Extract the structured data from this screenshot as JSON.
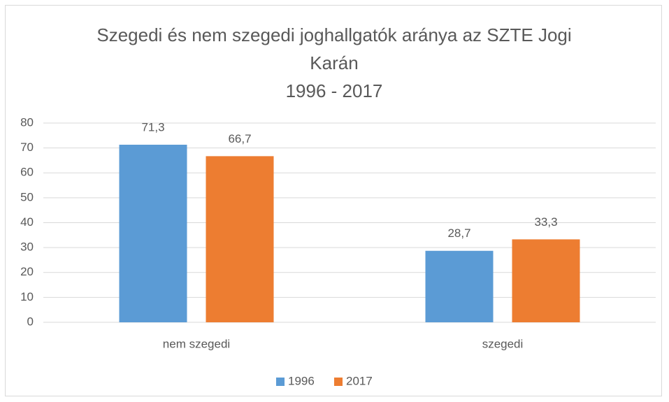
{
  "chart_data": {
    "type": "bar",
    "title": "Szegedi és nem szegedi joghallgatók aránya az SZTE Jogi Karán",
    "subtitle": "1996 - 2017",
    "categories": [
      "nem szegedi",
      "szegedi"
    ],
    "series": [
      {
        "name": "1996",
        "color": "#5b9bd5",
        "values": [
          71.3,
          28.7
        ],
        "value_labels": [
          "71,3",
          "28,7"
        ]
      },
      {
        "name": "2017",
        "color": "#ed7d31",
        "values": [
          66.7,
          33.3
        ],
        "value_labels": [
          "66,7",
          "33,3"
        ]
      }
    ],
    "ylim": [
      0,
      80
    ],
    "yticks": [
      0,
      10,
      20,
      30,
      40,
      50,
      60,
      70,
      80
    ],
    "grid": true,
    "legend": "bottom"
  }
}
